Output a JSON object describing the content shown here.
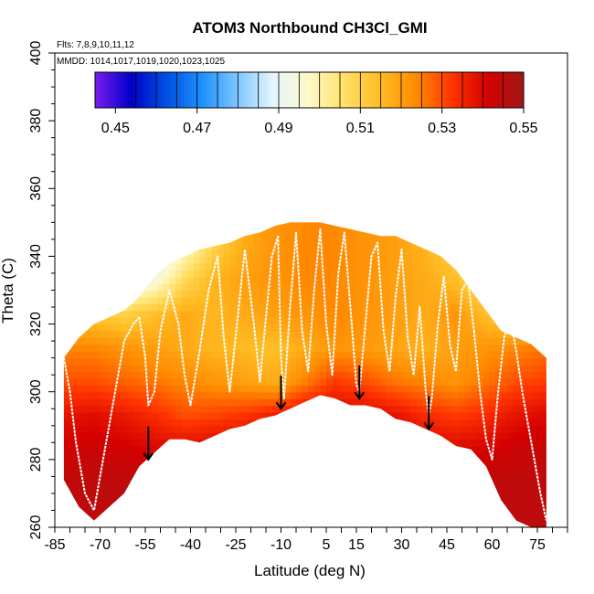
{
  "chart_data": {
    "type": "heatmap",
    "title": "ATOM3 Northbound CH3Cl_GMI",
    "flights_note": "Flts: 7,8,9,10,11,12",
    "dates_note": "MMDD: 1014,1017,1019,1020,1023,1025",
    "xlabel": "Latitude (deg N)",
    "ylabel": "Theta (C)",
    "xlim": [
      -85,
      85
    ],
    "ylim": [
      260,
      400
    ],
    "x_ticks": [
      -85,
      -70,
      -55,
      -40,
      -25,
      -10,
      5,
      15,
      30,
      45,
      60,
      75
    ],
    "x_tick_labels": [
      "-85",
      "-70",
      "-55",
      "-40",
      "-25",
      "-10",
      "5",
      "15",
      "30",
      "45",
      "60",
      "75"
    ],
    "y_ticks": [
      260,
      280,
      300,
      320,
      340,
      360,
      380,
      400
    ],
    "y_tick_labels": [
      "260",
      "280",
      "300",
      "320",
      "340",
      "360",
      "380",
      "400"
    ],
    "colorbar": {
      "min": 0.445,
      "max": 0.55,
      "tick_values": [
        0.45,
        0.47,
        0.49,
        0.51,
        0.53,
        0.55
      ],
      "tick_labels": [
        "0.45",
        "0.47",
        "0.49",
        "0.51",
        "0.53",
        "0.55"
      ],
      "colors": [
        "#7a1cf0",
        "#0000c8",
        "#0050e0",
        "#1e90ff",
        "#7fc8ff",
        "#e6f6ff",
        "#fff8c8",
        "#ffe066",
        "#ffbb22",
        "#ff8a00",
        "#ff3300",
        "#d40000",
        "#a01818"
      ]
    },
    "curtain": {
      "top_theta_profile": {
        "lat": [
          -82,
          -77,
          -72,
          -67,
          -62,
          -57,
          -52,
          -47,
          -42,
          -37,
          -32,
          -27,
          -22,
          -17,
          -12,
          -7,
          -2,
          3,
          8,
          13,
          18,
          23,
          28,
          33,
          38,
          43,
          48,
          53,
          58,
          63,
          68,
          73,
          78
        ],
        "theta": [
          310,
          316,
          320,
          322,
          324,
          328,
          334,
          338,
          340,
          342,
          343,
          344,
          346,
          347,
          349,
          350,
          350,
          350,
          349,
          348,
          347,
          346,
          346,
          344,
          342,
          340,
          336,
          330,
          324,
          318,
          316,
          314,
          310
        ]
      },
      "bottom_theta_profile": {
        "lat": [
          -82,
          -77,
          -72,
          -67,
          -62,
          -57,
          -52,
          -47,
          -42,
          -37,
          -32,
          -27,
          -22,
          -17,
          -12,
          -7,
          -2,
          3,
          8,
          13,
          18,
          23,
          28,
          33,
          38,
          43,
          48,
          53,
          58,
          63,
          68,
          73,
          78
        ],
        "theta": [
          274,
          266,
          262,
          266,
          270,
          278,
          282,
          286,
          286,
          285,
          287,
          289,
          290,
          292,
          293,
          295,
          297,
          299,
          298,
          296,
          296,
          295,
          292,
          291,
          289,
          287,
          284,
          283,
          278,
          268,
          262,
          260,
          260
        ]
      },
      "lat_levels": [
        -82,
        -72,
        -62,
        -52,
        -42,
        -32,
        -22,
        -12,
        -2,
        8,
        18,
        28,
        38,
        48,
        58,
        68,
        78
      ],
      "theta_levels": [
        262,
        272,
        282,
        292,
        302,
        312,
        322,
        332,
        342
      ],
      "values": [
        [
          0.545,
          0.545,
          0.545,
          0.545,
          0.545,
          0.545,
          0.545,
          0.545,
          0.545,
          0.545,
          0.545,
          0.545,
          0.545,
          0.545,
          0.545,
          0.545,
          0.545
        ],
        [
          0.545,
          0.545,
          0.545,
          0.545,
          0.543,
          0.543,
          0.543,
          0.543,
          0.543,
          0.543,
          0.543,
          0.543,
          0.543,
          0.543,
          0.545,
          0.545,
          0.545
        ],
        [
          0.542,
          0.543,
          0.542,
          0.54,
          0.54,
          0.541,
          0.541,
          0.541,
          0.542,
          0.542,
          0.541,
          0.541,
          0.54,
          0.54,
          0.541,
          0.543,
          0.544
        ],
        [
          0.538,
          0.539,
          0.537,
          0.534,
          0.53,
          0.531,
          0.533,
          0.536,
          0.54,
          0.541,
          0.54,
          0.538,
          0.534,
          0.532,
          0.534,
          0.538,
          0.54
        ],
        [
          0.53,
          0.53,
          0.528,
          0.526,
          0.524,
          0.522,
          0.52,
          0.518,
          0.525,
          0.532,
          0.53,
          0.526,
          0.524,
          0.522,
          0.526,
          0.53,
          0.532
        ],
        [
          0.524,
          0.524,
          0.522,
          0.52,
          0.518,
          0.516,
          0.515,
          0.514,
          0.518,
          0.522,
          0.521,
          0.519,
          0.517,
          0.52,
          0.522,
          0.524,
          0.526
        ],
        [
          0.514,
          0.512,
          0.51,
          0.514,
          0.518,
          0.516,
          0.518,
          0.52,
          0.522,
          0.524,
          0.522,
          0.52,
          0.518,
          0.522,
          0.514,
          0.508,
          0.51
        ],
        [
          0.495,
          0.49,
          0.488,
          0.494,
          0.508,
          0.516,
          0.52,
          0.522,
          0.524,
          0.524,
          0.522,
          0.52,
          0.518,
          0.514,
          0.506,
          0.496,
          0.494
        ],
        [
          0.475,
          0.475,
          0.472,
          0.48,
          0.496,
          0.51,
          0.518,
          0.522,
          0.524,
          0.524,
          0.522,
          0.52,
          0.516,
          0.51,
          0.5,
          0.49,
          0.49
        ]
      ]
    },
    "flight_tracks": [
      {
        "lat": [
          -82,
          -80,
          -78,
          -75,
          -72,
          -70,
          -67,
          -64,
          -62,
          -59,
          -57
        ],
        "theta": [
          310,
          300,
          285,
          270,
          265,
          275,
          290,
          305,
          315,
          320,
          322
        ]
      },
      {
        "lat": [
          -57,
          -55,
          -54,
          -52,
          -50,
          -47,
          -44,
          -42,
          -40,
          -37
        ],
        "theta": [
          322,
          310,
          296,
          300,
          318,
          330,
          320,
          305,
          296,
          312
        ]
      },
      {
        "lat": [
          -37,
          -34,
          -31,
          -29,
          -27,
          -24,
          -22,
          -19,
          -17,
          -15,
          -13,
          -11
        ],
        "theta": [
          312,
          330,
          340,
          316,
          300,
          325,
          342,
          320,
          303,
          322,
          340,
          346
        ]
      },
      {
        "lat": [
          -11,
          -10,
          -9,
          -7,
          -5,
          -3,
          -1,
          1,
          3,
          5,
          7,
          9
        ],
        "theta": [
          346,
          310,
          298,
          325,
          347,
          318,
          306,
          330,
          348,
          320,
          305,
          335
        ]
      },
      {
        "lat": [
          9,
          11,
          13,
          15,
          16,
          18,
          20,
          22,
          24,
          26,
          28,
          30,
          32,
          34
        ],
        "theta": [
          335,
          347,
          325,
          302,
          300,
          320,
          340,
          344,
          318,
          306,
          328,
          342,
          316,
          305
        ]
      },
      {
        "lat": [
          34,
          36,
          38,
          39,
          40,
          42,
          44,
          46,
          48,
          50,
          52,
          54
        ],
        "theta": [
          305,
          325,
          300,
          293,
          298,
          320,
          334,
          314,
          306,
          330,
          333,
          318
        ]
      },
      {
        "lat": [
          54,
          56,
          58,
          60,
          62,
          64,
          66,
          68,
          70,
          72,
          74,
          76,
          78
        ],
        "theta": [
          318,
          300,
          286,
          280,
          300,
          316,
          322,
          312,
          300,
          290,
          280,
          270,
          262
        ]
      }
    ],
    "arrows": [
      {
        "lat": -54,
        "theta_from": 286,
        "theta_to": 280
      },
      {
        "lat": -10,
        "theta_from": 301,
        "theta_to": 295
      },
      {
        "lat": 16,
        "theta_from": 304,
        "theta_to": 298
      },
      {
        "lat": 39,
        "theta_from": 295,
        "theta_to": 289
      }
    ]
  }
}
